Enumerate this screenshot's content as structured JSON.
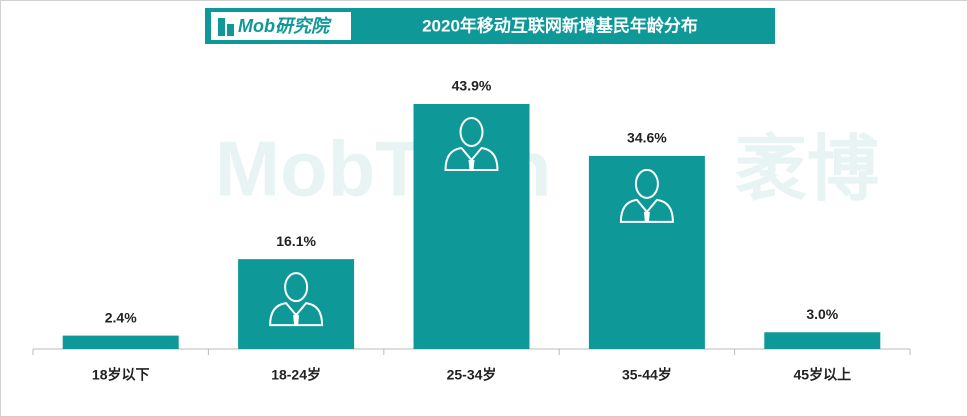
{
  "chart_data": {
    "type": "bar",
    "title": "2020年移动互联网新增基民年龄分布",
    "logo": "Mob研究院",
    "watermark": [
      "MobTech",
      "袤博"
    ],
    "categories": [
      "18岁以下",
      "18-24岁",
      "25-34岁",
      "35-44岁",
      "45岁以上"
    ],
    "values": [
      2.4,
      16.1,
      43.9,
      34.6,
      3.0
    ],
    "value_labels": [
      "2.4%",
      "16.1%",
      "43.9%",
      "34.6%",
      "3.0%"
    ],
    "color": "#0e9898"
  }
}
